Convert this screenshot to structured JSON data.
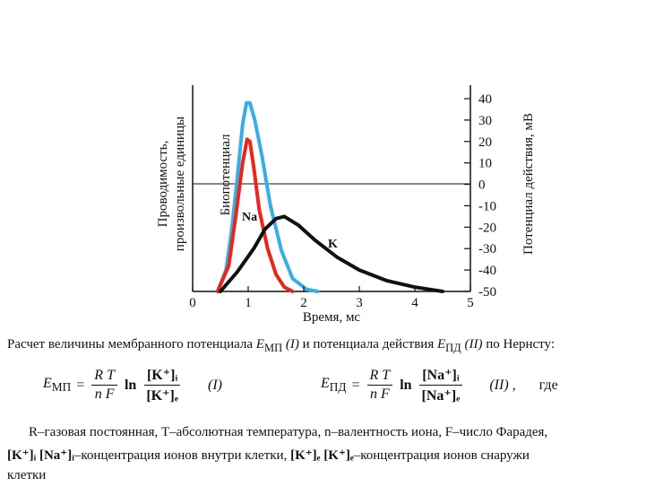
{
  "chart_data": {
    "type": "line",
    "xlabel": "Время, мс",
    "ylabel_left": "Проводимость, произвольные единицы",
    "ylabel_right": "Потенциал действия, мВ",
    "x_ticks": [
      "0",
      "1",
      "2",
      "3",
      "4",
      "5"
    ],
    "x_range": [
      0,
      5
    ],
    "y_right_ticks": [
      "40",
      "30",
      "20",
      "10",
      "0",
      "-10",
      "-20",
      "-30",
      "-40",
      "-50"
    ],
    "y_right_range": [
      -50,
      40
    ],
    "series": [
      {
        "name": "Биопотенциал",
        "color": "#38aee8",
        "points": [
          [
            0.45,
            -50
          ],
          [
            0.6,
            -40
          ],
          [
            0.7,
            -22
          ],
          [
            0.8,
            2
          ],
          [
            0.9,
            28
          ],
          [
            0.97,
            38
          ],
          [
            1.03,
            38
          ],
          [
            1.12,
            30
          ],
          [
            1.25,
            13
          ],
          [
            1.4,
            -10
          ],
          [
            1.6,
            -31
          ],
          [
            1.8,
            -44
          ],
          [
            2.05,
            -49
          ],
          [
            2.25,
            -50
          ]
        ]
      },
      {
        "name": "Na",
        "color": "#e8261c",
        "points": [
          [
            0.45,
            -50
          ],
          [
            0.65,
            -38
          ],
          [
            0.78,
            -14
          ],
          [
            0.9,
            10
          ],
          [
            0.98,
            21
          ],
          [
            1.03,
            20
          ],
          [
            1.1,
            8
          ],
          [
            1.2,
            -12
          ],
          [
            1.35,
            -30
          ],
          [
            1.5,
            -42
          ],
          [
            1.65,
            -48
          ],
          [
            1.8,
            -50
          ]
        ]
      },
      {
        "name": "K",
        "color": "#111111",
        "points": [
          [
            0.5,
            -50
          ],
          [
            0.8,
            -41
          ],
          [
            1.1,
            -30
          ],
          [
            1.3,
            -21
          ],
          [
            1.5,
            -16
          ],
          [
            1.65,
            -15
          ],
          [
            1.9,
            -19
          ],
          [
            2.2,
            -26
          ],
          [
            2.6,
            -34
          ],
          [
            3,
            -40
          ],
          [
            3.5,
            -45
          ],
          [
            4,
            -48
          ],
          [
            4.5,
            -50
          ]
        ]
      }
    ],
    "series_labels": {
      "bio": "Биопотенциал",
      "na": "Na",
      "k": "K"
    }
  },
  "text": {
    "intro_before_emp": "Расчет величины мембранного потенциала ",
    "emp_symbol": "E",
    "emp_sub": "МП",
    "emp_num": " (I) ",
    "intro_mid": "и потенциала действия ",
    "epd_symbol": "E",
    "epd_sub": "ПД",
    "epd_num": " (II) ",
    "intro_end": "по Нернсту:",
    "f1_eq": " = ",
    "f1_num": "R T",
    "f1_den": "n F",
    "ln": "ln",
    "f1_top": "[K⁺]ᵢ",
    "f1_bottom": "[K⁺]ₑ",
    "f1_label": "(I)",
    "f2_top": "[Na⁺]ᵢ",
    "f2_bottom": "[Na⁺]ₑ",
    "f2_label": "(II) ,",
    "where": "где",
    "def_line1": "R–газовая постоянная, T–абсолютная температура, n–валентность иона, F–число Фарадея,",
    "def_line2_a": "[K⁺]ᵢ  [Na⁺]ᵢ",
    "def_line2_b": "–концентрация ионов внутри клетки, ",
    "def_line2_c": "[K⁺]ₑ  [K⁺]ₑ",
    "def_line2_d": "–концентрация ионов снаружи",
    "def_line3": "клетки"
  }
}
